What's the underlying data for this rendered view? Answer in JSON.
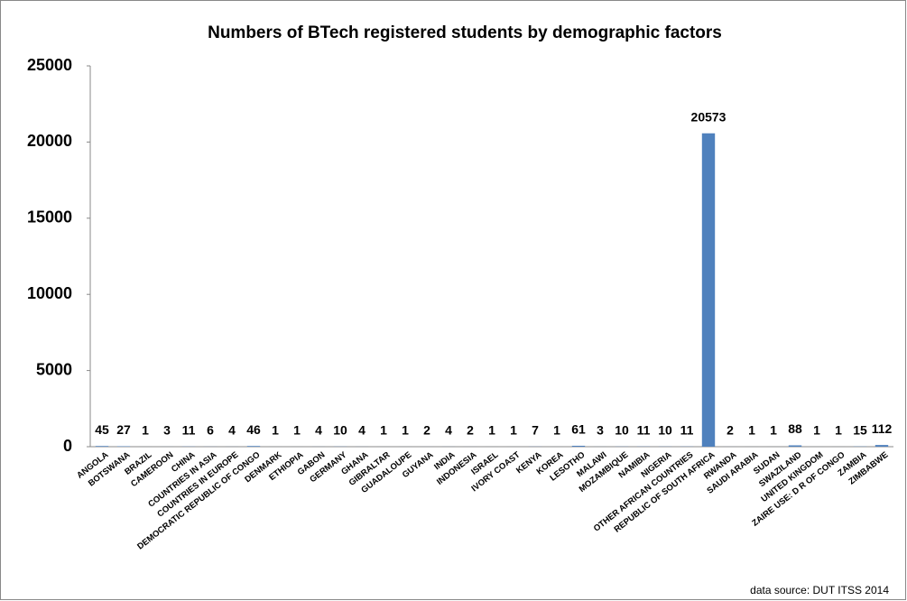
{
  "chart_data": {
    "type": "bar",
    "title": "Numbers of BTech registered students by demographic factors",
    "categories": [
      "ANGOLA",
      "BOTSWANA",
      "BRAZIL",
      "CAMEROON",
      "CHINA",
      "COUNTRIES IN ASIA",
      "COUNTRIES IN EUROPE",
      "DEMOCRATIC REPUBLIC OF CONGO",
      "DENMARK",
      "ETHIOPIA",
      "GABON",
      "GERMANY",
      "GHANA",
      "GIBRALTAR",
      "GUADALOUPE",
      "GUYANA",
      "INDIA",
      "INDONESIA",
      "ISRAEL",
      "IVORY COAST",
      "KENYA",
      "KOREA",
      "LESOTHO",
      "MALAWI",
      "MOZAMBIQUE",
      "NAMIBIA",
      "NIGERIA",
      "OTHER AFRICAN COUNTRIES",
      "REPUBLIC OF SOUTH AFRICA",
      "RWANDA",
      "SAUDI ARABIA",
      "SUDAN",
      "SWAZILAND",
      "UNITED KINGDOM",
      "ZAIRE USE: D R OF CONGO",
      "ZAMBIA",
      "ZIMBABWE"
    ],
    "values": [
      45,
      27,
      1,
      3,
      11,
      6,
      4,
      46,
      1,
      1,
      4,
      10,
      4,
      1,
      1,
      2,
      4,
      2,
      1,
      1,
      7,
      1,
      61,
      3,
      10,
      11,
      10,
      11,
      20573,
      2,
      1,
      1,
      88,
      1,
      1,
      15,
      112
    ],
    "color": "#4f81bd",
    "ylim": [
      0,
      25000
    ],
    "yticks": [
      0,
      5000,
      10000,
      15000,
      20000,
      25000
    ],
    "grid": false,
    "source": "data source: DUT ITSS 2014"
  }
}
